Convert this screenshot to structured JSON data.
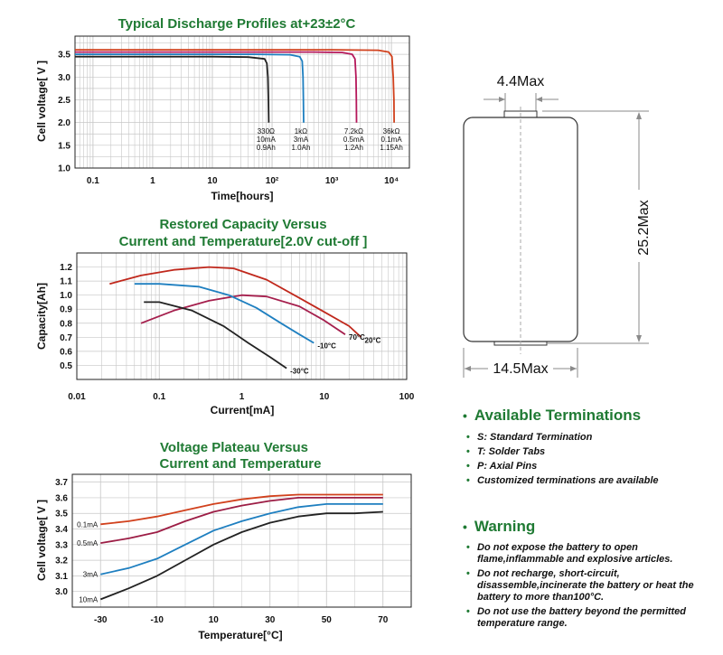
{
  "chart_data": [
    {
      "type": "line",
      "title": "Typical Discharge Profiles at+23±2°C",
      "xlabel": "Time[hours]",
      "ylabel": "Cell voltage[ V ]",
      "xscale": "log",
      "xlim": [
        0.05,
        20000
      ],
      "ylim": [
        1.0,
        3.9
      ],
      "xtick_labels": [
        "0.1",
        "1",
        "10",
        "10²",
        "10³",
        "10⁴"
      ],
      "xtick_values": [
        0.1,
        1,
        10,
        100,
        1000,
        10000
      ],
      "ytick_labels": [
        "1.0",
        "1.5",
        "2.0",
        "2.5",
        "3.0",
        "3.5"
      ],
      "ytick_values": [
        1.0,
        1.5,
        2.0,
        2.5,
        3.0,
        3.5
      ],
      "grid": true,
      "series": [
        {
          "color": "#222222",
          "x": [
            0.05,
            10,
            40,
            75,
            82,
            85,
            87,
            88
          ],
          "y": [
            3.45,
            3.45,
            3.44,
            3.4,
            3.3,
            3.0,
            2.5,
            2.0
          ],
          "label_lines": [
            "330Ω",
            "10mA",
            "0.9Ah"
          ]
        },
        {
          "color": "#1e7fc0",
          "x": [
            0.05,
            50,
            200,
            290,
            320,
            330,
            335,
            338
          ],
          "y": [
            3.5,
            3.5,
            3.49,
            3.45,
            3.35,
            3.0,
            2.5,
            2.0
          ],
          "label_lines": [
            "1kΩ",
            "3mA",
            "1.0Ah"
          ]
        },
        {
          "color": "#b5175a",
          "x": [
            0.05,
            500,
            1500,
            2200,
            2450,
            2550,
            2580,
            2600
          ],
          "y": [
            3.55,
            3.55,
            3.54,
            3.5,
            3.4,
            3.0,
            2.5,
            2.0
          ],
          "label_lines": [
            "7.2kΩ",
            "0.5mA",
            "1.2Ah"
          ]
        },
        {
          "color": "#d1411d",
          "x": [
            0.05,
            1000,
            6000,
            9000,
            10200,
            10700,
            11000,
            11100
          ],
          "y": [
            3.6,
            3.6,
            3.59,
            3.55,
            3.45,
            3.0,
            2.5,
            2.0
          ],
          "label_lines": [
            "36kΩ",
            "0.1mA",
            "1.15Ah"
          ]
        }
      ]
    },
    {
      "type": "line",
      "title_lines": [
        "Restored Capacity Versus",
        "Current and Temperature[2.0V cut-off ]"
      ],
      "xlabel": "Current[mA]",
      "ylabel": "Capacity[Ah]",
      "xscale": "log",
      "xlim": [
        0.01,
        100
      ],
      "ylim": [
        0.4,
        1.3
      ],
      "xtick_labels": [
        "0.01",
        "0.1",
        "1",
        "10",
        "100"
      ],
      "xtick_values": [
        0.01,
        0.1,
        1,
        10,
        100
      ],
      "ytick_labels": [
        "0.5",
        "0.6",
        "0.7",
        "0.8",
        "0.9",
        "1.0",
        "1.1",
        "1.2"
      ],
      "ytick_values": [
        0.5,
        0.6,
        0.7,
        0.8,
        0.9,
        1.0,
        1.1,
        1.2
      ],
      "grid": true,
      "series": [
        {
          "name": "20°C",
          "color": "#c0281c",
          "x": [
            0.025,
            0.06,
            0.15,
            0.4,
            0.8,
            2,
            5,
            10,
            20,
            28
          ],
          "y": [
            1.08,
            1.14,
            1.18,
            1.2,
            1.19,
            1.11,
            0.98,
            0.88,
            0.78,
            0.7
          ]
        },
        {
          "name": "70°C",
          "color": "#a51f4d",
          "x": [
            0.06,
            0.15,
            0.4,
            1,
            2,
            5,
            10,
            18
          ],
          "y": [
            0.8,
            0.89,
            0.96,
            1.0,
            0.99,
            0.92,
            0.82,
            0.72
          ]
        },
        {
          "name": "-10°C",
          "color": "#1e7fc0",
          "x": [
            0.05,
            0.1,
            0.3,
            0.7,
            1.5,
            3,
            5,
            7.5
          ],
          "y": [
            1.08,
            1.08,
            1.06,
            1.0,
            0.91,
            0.8,
            0.72,
            0.66
          ]
        },
        {
          "name": "-30°C",
          "color": "#222222",
          "x": [
            0.065,
            0.1,
            0.25,
            0.6,
            1.2,
            2.2,
            3.5
          ],
          "y": [
            0.95,
            0.95,
            0.89,
            0.78,
            0.66,
            0.56,
            0.48
          ]
        }
      ]
    },
    {
      "type": "line",
      "title_lines": [
        "Voltage Plateau Versus",
        "Current and Temperature"
      ],
      "xlabel": "Temperature[°C]",
      "ylabel": "Cell voltage[ V ]",
      "xlim": [
        -40,
        80
      ],
      "ylim": [
        2.9,
        3.75
      ],
      "xtick_labels": [
        "-30",
        "-10",
        "10",
        "30",
        "50",
        "70"
      ],
      "xtick_values": [
        -30,
        -10,
        10,
        30,
        50,
        70
      ],
      "ytick_labels": [
        "3.0",
        "3.1",
        "3.2",
        "3.3",
        "3.4",
        "3.5",
        "3.6",
        "3.7"
      ],
      "ytick_values": [
        3.0,
        3.1,
        3.2,
        3.3,
        3.4,
        3.5,
        3.6,
        3.7
      ],
      "grid": true,
      "series": [
        {
          "name": "0.1mA",
          "color": "#d1411d",
          "x": [
            -30,
            -20,
            -10,
            0,
            10,
            20,
            30,
            40,
            50,
            60,
            70
          ],
          "y": [
            3.43,
            3.45,
            3.48,
            3.52,
            3.56,
            3.59,
            3.61,
            3.62,
            3.62,
            3.62,
            3.62
          ]
        },
        {
          "name": "0.5mA",
          "color": "#9c1d45",
          "x": [
            -30,
            -20,
            -10,
            0,
            10,
            20,
            30,
            40,
            50,
            60,
            70
          ],
          "y": [
            3.31,
            3.34,
            3.38,
            3.45,
            3.51,
            3.55,
            3.58,
            3.6,
            3.6,
            3.6,
            3.6
          ]
        },
        {
          "name": "3mA",
          "color": "#1e7fc0",
          "x": [
            -30,
            -20,
            -10,
            0,
            10,
            20,
            30,
            40,
            50,
            60,
            70
          ],
          "y": [
            3.11,
            3.15,
            3.21,
            3.3,
            3.39,
            3.45,
            3.5,
            3.54,
            3.56,
            3.56,
            3.56
          ]
        },
        {
          "name": "10mA",
          "color": "#222222",
          "x": [
            -30,
            -20,
            -10,
            0,
            10,
            20,
            30,
            40,
            50,
            60,
            70
          ],
          "y": [
            2.95,
            3.02,
            3.1,
            3.2,
            3.3,
            3.38,
            3.44,
            3.48,
            3.5,
            3.5,
            3.51
          ]
        }
      ]
    }
  ],
  "drawing": {
    "dim_top": "4.4Max",
    "dim_height": "25.2Max",
    "dim_width": "14.5Max"
  },
  "terminations": {
    "title": "Available Terminations",
    "items": [
      "S: Standard Termination",
      "T: Solder Tabs",
      "P: Axial Pins",
      "Customized terminations are available"
    ]
  },
  "warning": {
    "title": "Warning",
    "items": [
      "Do not expose the battery to open flame,inflammable and explosive articles.",
      "Do not recharge, short-circuit, disassemble,incinerate the battery or heat the battery to more than100°C.",
      "Do not use the battery beyond the permitted temperature range."
    ]
  },
  "colors": {
    "title_green": "#1f7a33",
    "grid": "#c7c7c7",
    "dim_line": "#8a8a8a"
  }
}
